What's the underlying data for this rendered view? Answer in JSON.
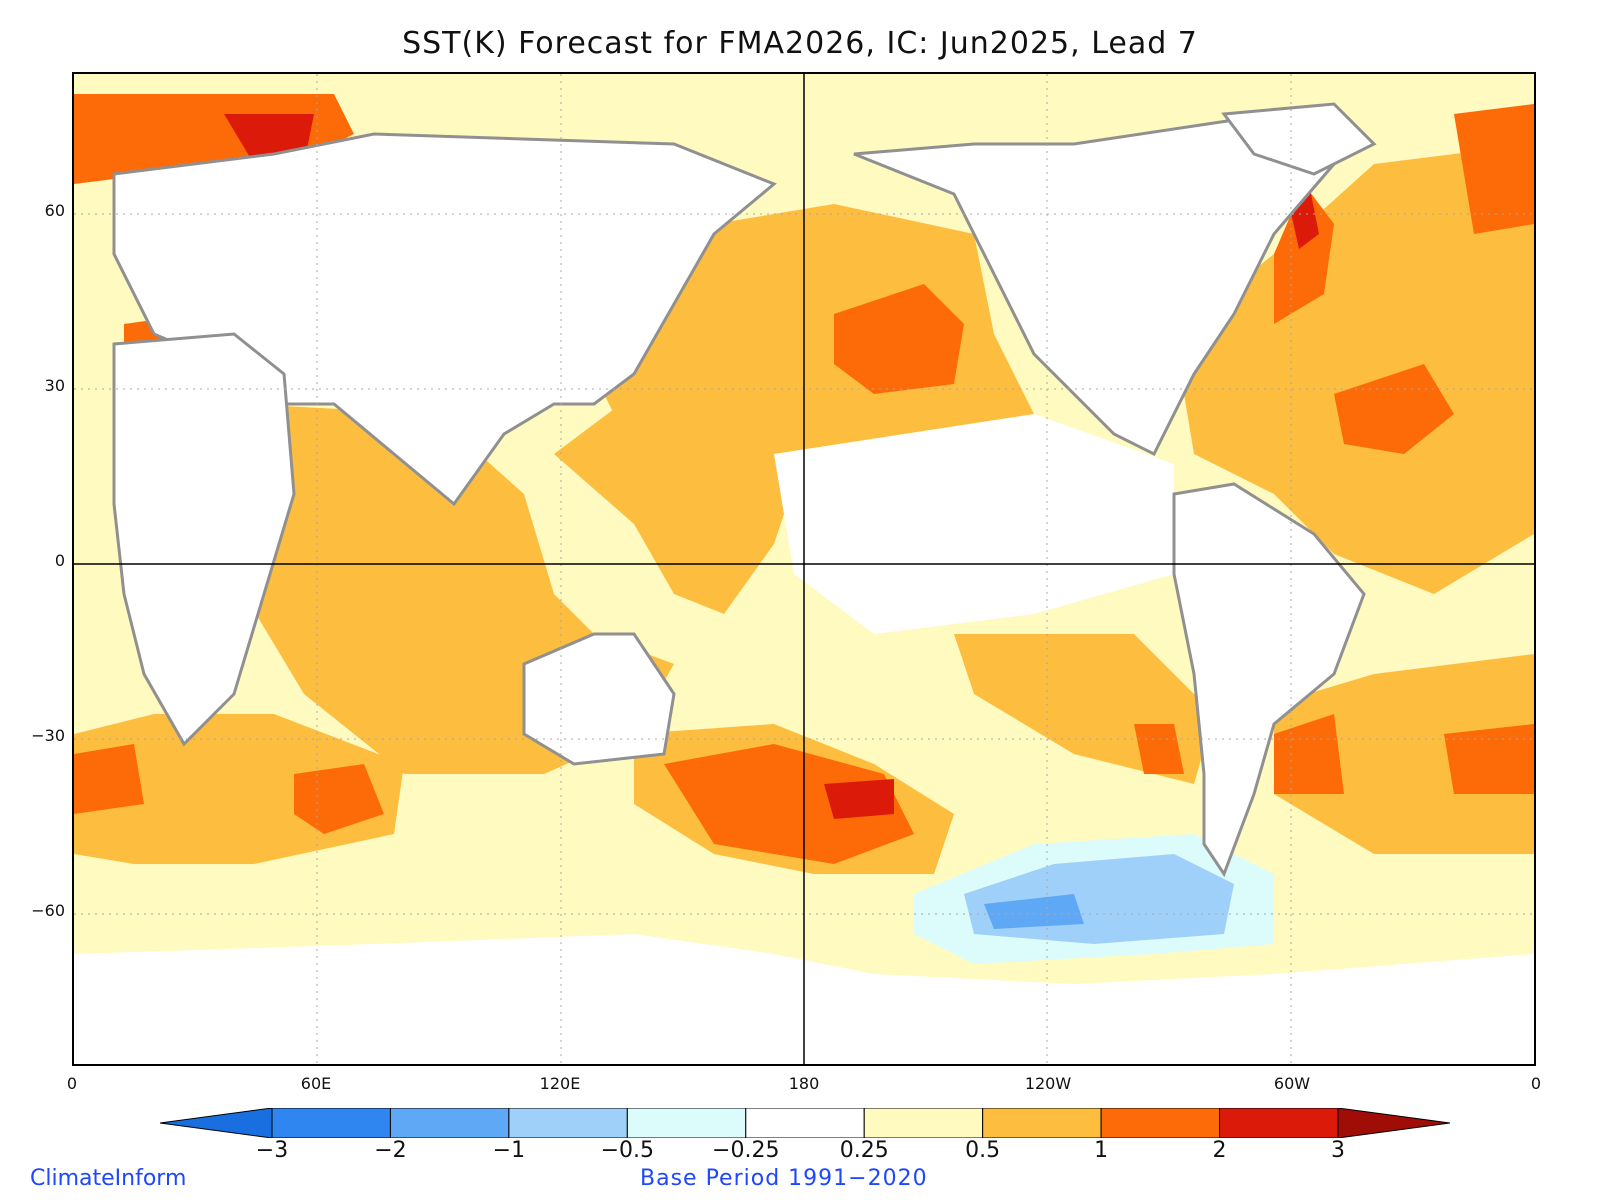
{
  "title": "SST(K) Forecast for FMA2026, IC: Jun2025, Lead 7",
  "lat_labels": [
    "60",
    "30",
    "0",
    "−30",
    "−60"
  ],
  "lon_labels": [
    "0",
    "60E",
    "120E",
    "180",
    "120W",
    "60W",
    "0"
  ],
  "colorbar": {
    "labels": [
      "−3",
      "−2",
      "−1",
      "−0.5",
      "−0.25",
      "0.25",
      "0.5",
      "1",
      "2",
      "3"
    ],
    "colors": [
      "#1a6fe0",
      "#2f86f0",
      "#5fa8f5",
      "#9fd0fa",
      "#dcfbfb",
      "#ffffff",
      "#fffac0",
      "#fdbd3f",
      "#fd6a08",
      "#dc1a0a",
      "#a00c06"
    ]
  },
  "footer": {
    "source": "ClimateInform",
    "base_period": "Base Period 1991−2020"
  }
}
